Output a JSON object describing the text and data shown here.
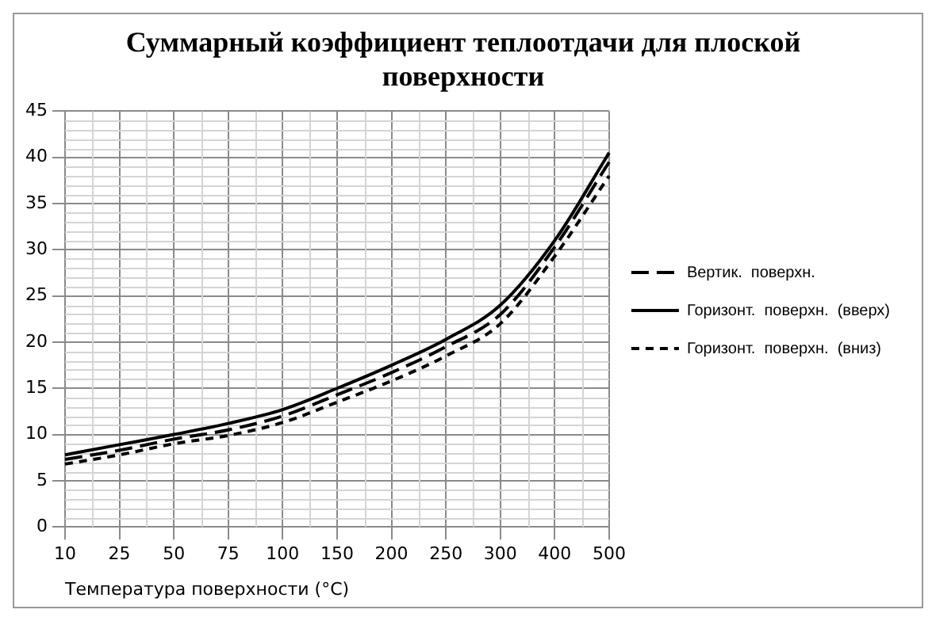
{
  "chart_data": {
    "type": "line",
    "title": "Суммарный коэффициент теплоотдачи для плоской поверхности",
    "xlabel": "Температура поверхности (°C)",
    "categories": [
      "10",
      "25",
      "50",
      "75",
      "100",
      "150",
      "200",
      "250",
      "300",
      "400",
      "500"
    ],
    "ylim": [
      0,
      45
    ],
    "yticks": [
      0,
      5,
      10,
      15,
      20,
      25,
      30,
      35,
      40,
      45
    ],
    "grid": true,
    "legend": "right",
    "marker": "none",
    "series": [
      {
        "name": "Вертик.  поверхн.",
        "color": "#000000",
        "line_style": "dashed",
        "values": [
          7.3,
          8.3,
          9.5,
          10.5,
          12,
          14.3,
          16.7,
          19.5,
          23,
          30.3,
          39.5
        ]
      },
      {
        "name": "Горизонт.  поверхн.  (вверх)",
        "color": "#000000",
        "line_style": "solid",
        "values": [
          7.8,
          8.9,
          10,
          11.2,
          12.7,
          15,
          17.5,
          20.3,
          24,
          31,
          40.5
        ]
      },
      {
        "name": "Горизонт.  поверхн.  (вниз)",
        "color": "#000000",
        "line_style": "dashed",
        "values": [
          6.8,
          7.8,
          9,
          9.9,
          11.3,
          13.5,
          15.8,
          18.5,
          22,
          29.3,
          38
        ]
      }
    ]
  }
}
